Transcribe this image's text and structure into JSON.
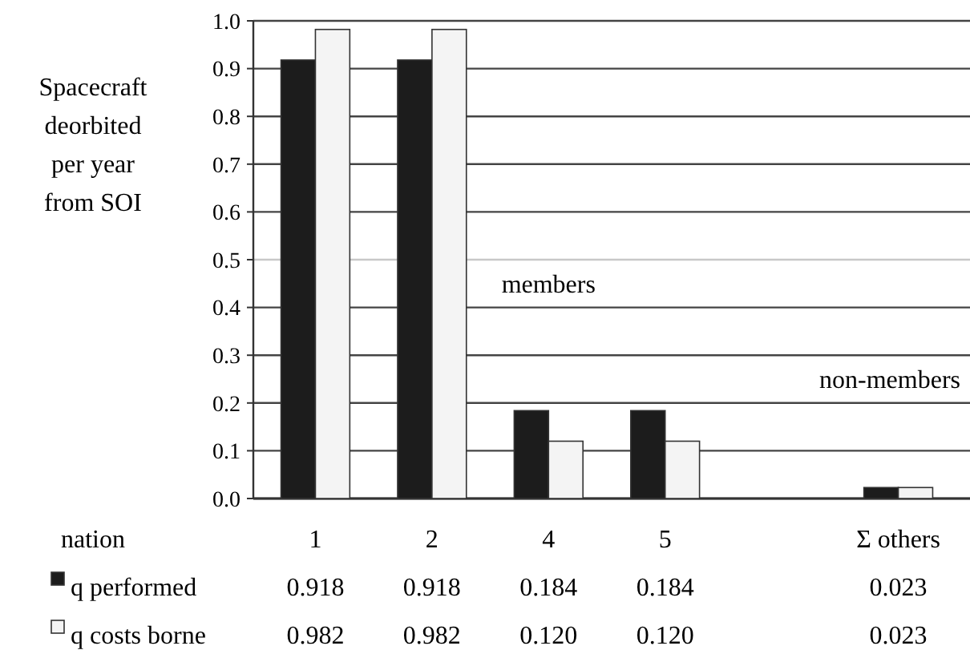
{
  "chart_data": {
    "type": "bar",
    "xlabel": "nation",
    "ylabel": "Spacecraft deorbited per year from SOI",
    "categories": [
      "1",
      "2",
      "4",
      "5",
      null,
      "Σ others"
    ],
    "series": [
      {
        "name": "q performed",
        "color": "#1c1c1c",
        "values": [
          0.918,
          0.918,
          0.184,
          0.184,
          null,
          0.023
        ],
        "value_labels": [
          "0.918",
          "0.918",
          "0.184",
          "0.184",
          null,
          "0.023"
        ]
      },
      {
        "name": "q costs borne",
        "color": "#f4f4f4",
        "values": [
          0.982,
          0.982,
          0.12,
          0.12,
          null,
          0.023
        ],
        "value_labels": [
          "0.982",
          "0.982",
          "0.120",
          "0.120",
          null,
          "0.023"
        ]
      }
    ],
    "ylim": [
      0,
      1
    ],
    "yticks": [
      {
        "value": 0,
        "label": "0.0"
      },
      {
        "value": 0.1,
        "label": "0.1"
      },
      {
        "value": 0.2,
        "label": "0.2"
      },
      {
        "value": 0.3,
        "label": "0.3"
      },
      {
        "value": 0.4,
        "label": "0.4"
      },
      {
        "value": 0.5,
        "label": "0.5"
      },
      {
        "value": 0.6,
        "label": "0.6"
      },
      {
        "value": 0.7,
        "label": "0.7"
      },
      {
        "value": 0.8,
        "label": "0.8"
      },
      {
        "value": 0.9,
        "label": "0.9"
      },
      {
        "value": 1,
        "label": "1.0"
      }
    ],
    "grid": "y",
    "legend": "bottom left",
    "data_labels": true,
    "ref_lines": [
      {
        "axis": "y",
        "value": 0.5,
        "color": "#c8c8c8"
      }
    ],
    "annotations": [
      "members",
      "non-members"
    ]
  }
}
